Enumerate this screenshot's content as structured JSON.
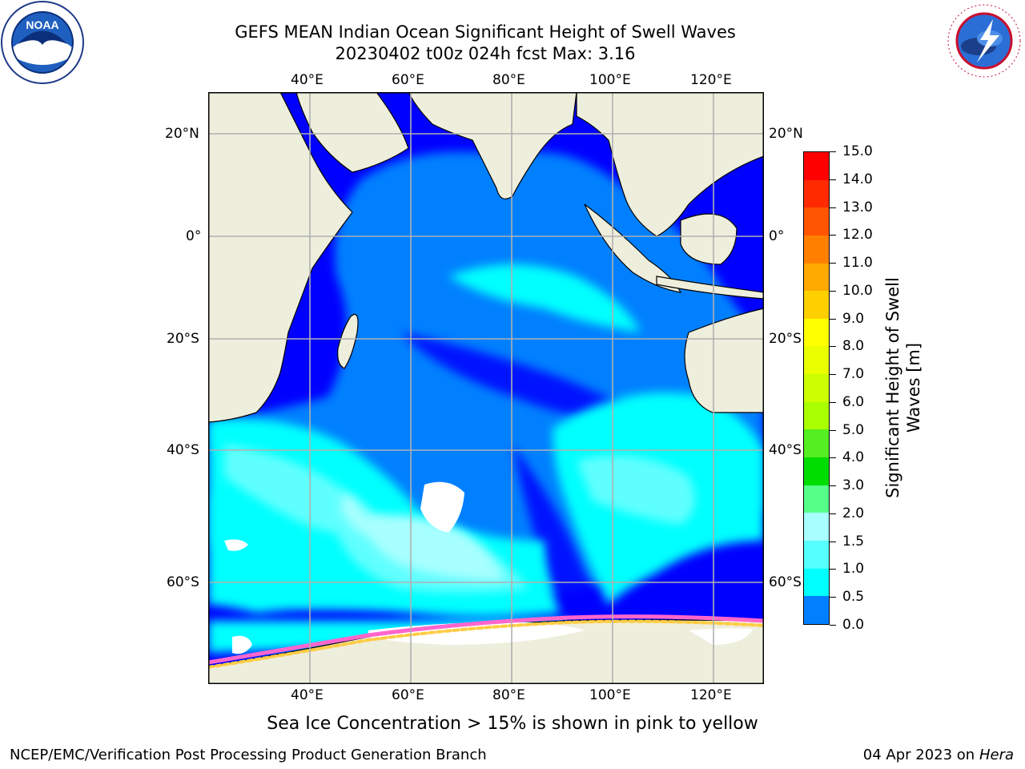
{
  "title": {
    "line1": "GEFS MEAN Indian Ocean Significant Height of Swell Waves",
    "line2": "20230402 t00z 024h fcst   Max: 3.16"
  },
  "logos": {
    "noara_text": "NOAA",
    "noaa_ring_text": "NATIONAL OCEANIC AND ATMOSPHERIC ADMINISTRATION · U.S. DEPARTMENT OF COMMERCE",
    "nws_ring_text": "NATIONAL WEATHER SERVICE"
  },
  "map": {
    "top_lon_labels": [
      "40°E",
      "60°E",
      "80°E",
      "100°E",
      "120°E"
    ],
    "bottom_lon_labels": [
      "40°E",
      "60°E",
      "80°E",
      "100°E",
      "120°E"
    ],
    "left_lat_labels": [
      "20°N",
      "0°",
      "20°S",
      "40°S",
      "60°S"
    ],
    "right_lat_labels": [
      "20°N",
      "0°",
      "20°S",
      "40°S",
      "60°S"
    ],
    "colors": {
      "land": "#eeeedd",
      "band_0_0_5": "#0000ff",
      "band_0_5_1_0": "#0080ff",
      "band_1_0_1_5": "#00ffff",
      "band_1_5_2_0": "#40ffff",
      "band_2_0_3_0": "#a0ffff",
      "ice_pink": "#ff66cc",
      "ice_yellow": "#ffcc44"
    }
  },
  "colorbar": {
    "label": "Significant Height of Swell Waves [m]",
    "label_line1": "Significant Height of Swell",
    "label_line2": "Waves [m]",
    "ticks": [
      "15.0",
      "14.0",
      "13.0",
      "12.0",
      "11.0",
      "10.0",
      "9.0",
      "8.0",
      "7.0",
      "6.0",
      "5.0",
      "4.0",
      "3.0",
      "2.0",
      "1.5",
      "1.0",
      "0.5",
      "0.0"
    ],
    "colors": [
      "#ff0000",
      "#ff2a00",
      "#ff5500",
      "#ff8000",
      "#ffaa00",
      "#ffd000",
      "#ffff00",
      "#eaff00",
      "#ccff00",
      "#aaff00",
      "#55ee22",
      "#00dd00",
      "#55ff88",
      "#a8ffff",
      "#55ffff",
      "#00ffff",
      "#0080ff",
      "#0000ff"
    ]
  },
  "caption": "Sea Ice Concentration > 15% is shown in pink to yellow",
  "footer": {
    "left": "NCEP/EMC/Verification Post Processing Product Generation Branch",
    "date": "04 Apr 2023 on ",
    "host": "Hera"
  }
}
